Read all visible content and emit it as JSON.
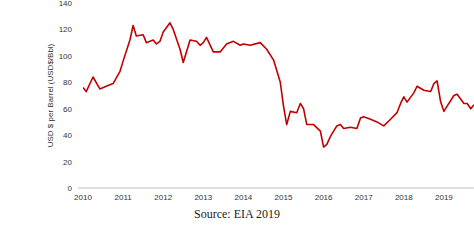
{
  "chart_data": {
    "type": "line",
    "y_label": "USD $ per Barrel (USD$/Bbl)",
    "source": "Source: EIA 2019",
    "color": "#c00000",
    "grid": false,
    "xlim": [
      2010,
      2019.75
    ],
    "xticks": [
      2010,
      2011,
      2012,
      2013,
      2014,
      2015,
      2016,
      2017,
      2018,
      2019
    ],
    "ylim": [
      0,
      140
    ],
    "yticks": [
      0,
      20,
      40,
      60,
      80,
      100,
      120,
      140
    ],
    "x": [
      2010.0,
      2010.08,
      2010.25,
      2010.42,
      2010.58,
      2010.75,
      2010.92,
      2011.0,
      2011.17,
      2011.25,
      2011.33,
      2011.5,
      2011.58,
      2011.75,
      2011.83,
      2011.92,
      2012.0,
      2012.17,
      2012.25,
      2012.42,
      2012.5,
      2012.67,
      2012.83,
      2012.92,
      2013.0,
      2013.08,
      2013.25,
      2013.42,
      2013.58,
      2013.75,
      2013.92,
      2014.0,
      2014.17,
      2014.42,
      2014.58,
      2014.75,
      2014.92,
      2015.0,
      2015.08,
      2015.17,
      2015.33,
      2015.42,
      2015.5,
      2015.58,
      2015.75,
      2015.92,
      2016.0,
      2016.08,
      2016.17,
      2016.33,
      2016.42,
      2016.5,
      2016.67,
      2016.83,
      2016.92,
      2017.0,
      2017.17,
      2017.33,
      2017.5,
      2017.67,
      2017.83,
      2017.92,
      2018.0,
      2018.08,
      2018.25,
      2018.33,
      2018.5,
      2018.67,
      2018.75,
      2018.83,
      2018.92,
      2019.0,
      2019.08,
      2019.25,
      2019.33,
      2019.5,
      2019.58,
      2019.67,
      2019.75
    ],
    "values": [
      76,
      73,
      84,
      75,
      77,
      79,
      88,
      96,
      112,
      123,
      115,
      116,
      110,
      112,
      109,
      111,
      118,
      125,
      120,
      105,
      95,
      112,
      111,
      108,
      110,
      114,
      103,
      103,
      109,
      111,
      108,
      109,
      108,
      110,
      105,
      97,
      80,
      62,
      48,
      58,
      57,
      64,
      60,
      48,
      48,
      43,
      31,
      33,
      39,
      47,
      48,
      45,
      46,
      45,
      53,
      54,
      52,
      50,
      47,
      52,
      57,
      64,
      69,
      65,
      72,
      77,
      74,
      73,
      79,
      81,
      65,
      58,
      62,
      70,
      71,
      64,
      64,
      60,
      63
    ]
  }
}
